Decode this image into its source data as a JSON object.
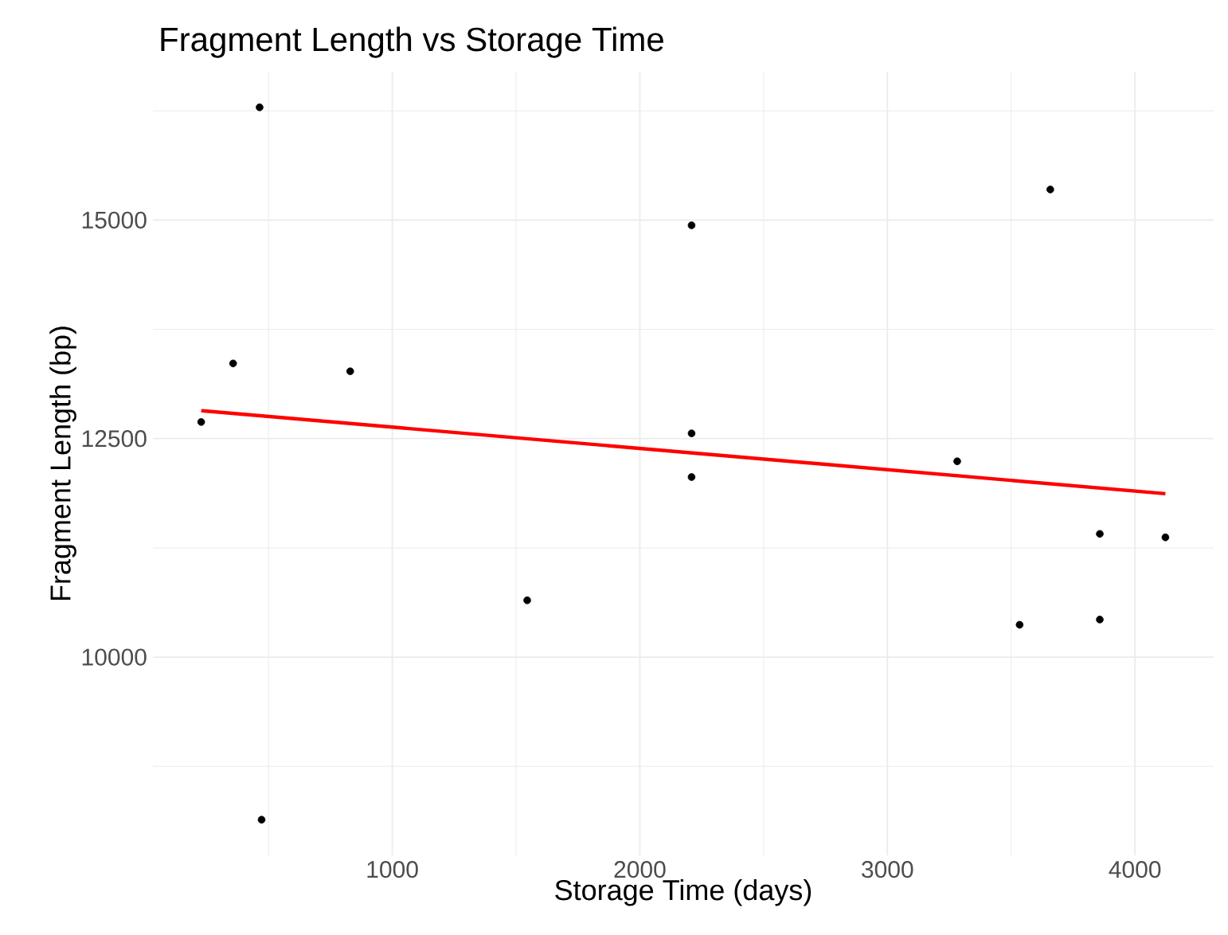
{
  "chart_data": {
    "type": "scatter",
    "title": "Fragment Length vs Storage Time",
    "xlabel": "Storage Time (days)",
    "ylabel": "Fragment Length (bp)",
    "xlim": [
      33,
      4318
    ],
    "ylim": [
      7732,
      16698
    ],
    "xticks": [
      1000,
      2000,
      3000,
      4000
    ],
    "yticks": [
      10000,
      12500,
      15000
    ],
    "grid": true,
    "marker": "circle",
    "series": [
      {
        "color": "#000000",
        "x": [
          228,
          357,
          464,
          472,
          830,
          1545,
          2209,
          2209,
          2209,
          3282,
          3534,
          3658,
          3858,
          3858,
          4123
        ],
        "values": [
          12690,
          13360,
          16290,
          8140,
          13270,
          10650,
          14940,
          12560,
          12060,
          12240,
          10370,
          15350,
          11410,
          10430,
          11370
        ]
      },
      {
        "type": "line",
        "color": "#ff0000",
        "marker": "none",
        "x": [
          228,
          4123
        ],
        "values": [
          12820,
          11870
        ]
      }
    ]
  }
}
